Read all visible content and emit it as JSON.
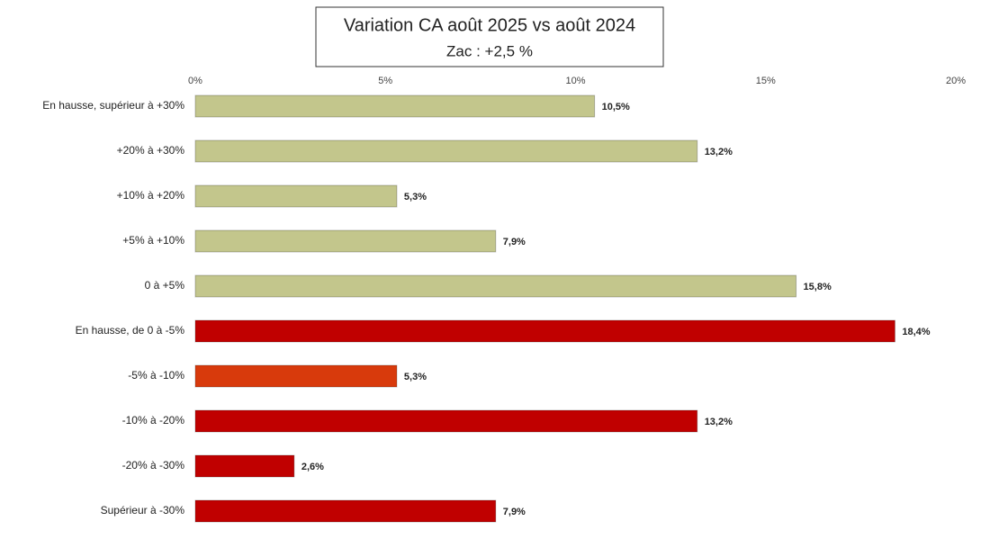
{
  "chart_data": {
    "type": "hbar",
    "title": "Variation CA août 2025 vs août 2024",
    "subtitle": "Zac : +2,5 %",
    "categories": [
      "En hausse, supérieur à +30%",
      "+20% à +30%",
      "+10% à +20%",
      "+5% à +10%",
      "0 à +5%",
      "En hausse, de 0 à -5%",
      "-5% à -10%",
      "-10% à -20%",
      "-20% à -30%",
      "Supérieur à -30%"
    ],
    "values": [
      10.5,
      13.2,
      5.3,
      7.9,
      15.8,
      18.4,
      5.3,
      13.2,
      2.6,
      7.9
    ],
    "value_labels": [
      "10,5%",
      "13,2%",
      "5,3%",
      "7,9%",
      "15,8%",
      "18,4%",
      "5,3%",
      "13,2%",
      "2,6%",
      "7,9%"
    ],
    "colors": [
      "#c3c68c",
      "#c3c68c",
      "#c3c68c",
      "#c3c68c",
      "#c3c68c",
      "#c00000",
      "#d83a0c",
      "#c00000",
      "#c00000",
      "#c00000"
    ],
    "xlim": [
      0,
      20
    ],
    "xticks": [
      {
        "value": 0,
        "label": "0%"
      },
      {
        "value": 5,
        "label": "5%"
      },
      {
        "value": 10,
        "label": "10%"
      },
      {
        "value": 15,
        "label": "15%"
      },
      {
        "value": 20,
        "label": "20%"
      }
    ],
    "grid": false
  }
}
